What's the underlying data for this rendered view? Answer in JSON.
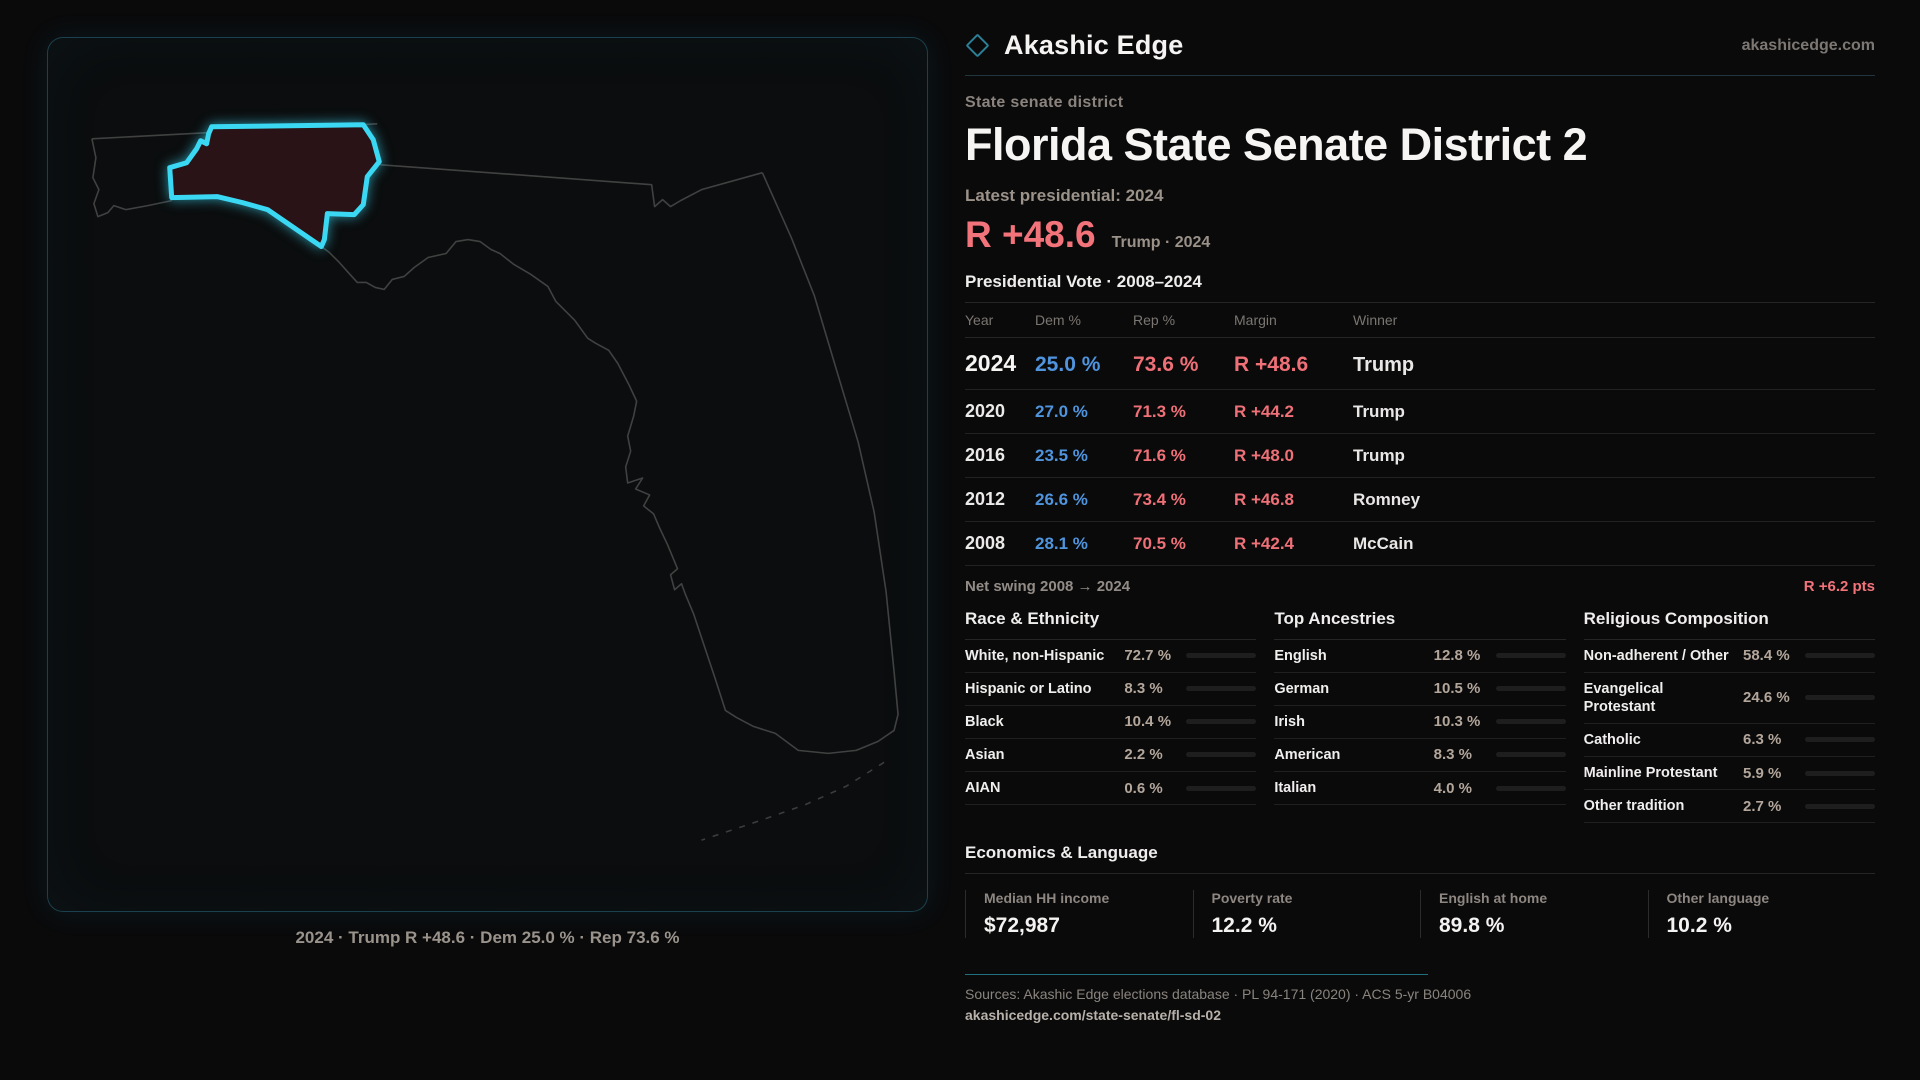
{
  "brand": {
    "name": "Akashic Edge",
    "site": "akashicedge.com"
  },
  "page": {
    "kicker": "State senate district",
    "title": "Florida State Senate District 2",
    "latest_label": "Latest presidential: 2024",
    "margin_big": "R +48.6",
    "margin_sub": "Trump · 2024"
  },
  "map": {
    "caption": "2024 · Trump R +48.6 · Dem 25.0 % · Rep 73.6 %",
    "district_color": "#3bd8f4",
    "district_fill": "#2a1316",
    "state_outline_color": "#414141"
  },
  "vote_table": {
    "title": "Presidential Vote · 2008–2024",
    "columns": [
      "Year",
      "Dem %",
      "Rep %",
      "Margin",
      "Winner"
    ],
    "rows": [
      {
        "year": "2024",
        "dem": "25.0 %",
        "rep": "73.6 %",
        "margin": "R +48.6",
        "winner": "Trump",
        "emphasis": true
      },
      {
        "year": "2020",
        "dem": "27.0 %",
        "rep": "71.3 %",
        "margin": "R +44.2",
        "winner": "Trump",
        "emphasis": false
      },
      {
        "year": "2016",
        "dem": "23.5 %",
        "rep": "71.6 %",
        "margin": "R +48.0",
        "winner": "Trump",
        "emphasis": false
      },
      {
        "year": "2012",
        "dem": "26.6 %",
        "rep": "73.4 %",
        "margin": "R +46.8",
        "winner": "Romney",
        "emphasis": false
      },
      {
        "year": "2008",
        "dem": "28.1 %",
        "rep": "70.5 %",
        "margin": "R +42.4",
        "winner": "McCain",
        "emphasis": false
      }
    ],
    "net_swing_label": "Net swing 2008 → 2024",
    "net_swing_value": "R +6.2 pts"
  },
  "demographics": [
    {
      "title": "Race & Ethnicity",
      "rows": [
        {
          "label": "White, non-Hispanic",
          "value": "72.7 %",
          "pct": 72.7,
          "color": "#97a9c6"
        },
        {
          "label": "Hispanic or Latino",
          "value": "8.3 %",
          "pct": 8.3,
          "color": "#e0993a"
        },
        {
          "label": "Black",
          "value": "10.4 %",
          "pct": 10.4,
          "color": "#9b8cf0"
        },
        {
          "label": "Asian",
          "value": "2.2 %",
          "pct": 2.2,
          "color": "#17a97d"
        },
        {
          "label": "AIAN",
          "value": "0.6 %",
          "pct": 0.6,
          "color": "#8a8a8a"
        }
      ]
    },
    {
      "title": "Top Ancestries",
      "rows": [
        {
          "label": "English",
          "value": "12.8 %",
          "pct": 12.8,
          "color": "#8fa9c4"
        },
        {
          "label": "German",
          "value": "10.5 %",
          "pct": 10.5,
          "color": "#8fa9c4"
        },
        {
          "label": "Irish",
          "value": "10.3 %",
          "pct": 10.3,
          "color": "#8fa9c4"
        },
        {
          "label": "American",
          "value": "8.3 %",
          "pct": 8.3,
          "color": "#8fa9c4"
        },
        {
          "label": "Italian",
          "value": "4.0 %",
          "pct": 4.0,
          "color": "#8fa9c4"
        }
      ]
    },
    {
      "title": "Religious Composition",
      "rows": [
        {
          "label": "Non-adherent / Other",
          "value": "58.4 %",
          "pct": 58.4,
          "color": "#6d7888"
        },
        {
          "label": "Evangelical Protestant",
          "value": "24.6 %",
          "pct": 24.6,
          "color": "#e2737b"
        },
        {
          "label": "Catholic",
          "value": "6.3 %",
          "pct": 6.3,
          "color": "#d9a431"
        },
        {
          "label": "Mainline Protestant",
          "value": "5.9 %",
          "pct": 5.9,
          "color": "#4a90e8"
        },
        {
          "label": "Other tradition",
          "value": "2.7 %",
          "pct": 2.7,
          "color": "#9aa0a8"
        }
      ]
    }
  ],
  "economics": {
    "title": "Economics & Language",
    "stats": [
      {
        "label": "Median HH income",
        "value": "$72,987"
      },
      {
        "label": "Poverty rate",
        "value": "12.2 %"
      },
      {
        "label": "English at home",
        "value": "89.8 %"
      },
      {
        "label": "Other language",
        "value": "10.2 %"
      }
    ]
  },
  "footer": {
    "sources": "Sources: Akashic Edge elections database · PL 94-171 (2020) · ACS 5-yr B04006",
    "permalink": "akashicedge.com/state-senate/fl-sd-02"
  },
  "colors": {
    "accent_cyan": "#3bd8f4",
    "rep_red": "#f3737b",
    "dem_blue": "#4f94dd",
    "background": "#0a0a0b"
  }
}
